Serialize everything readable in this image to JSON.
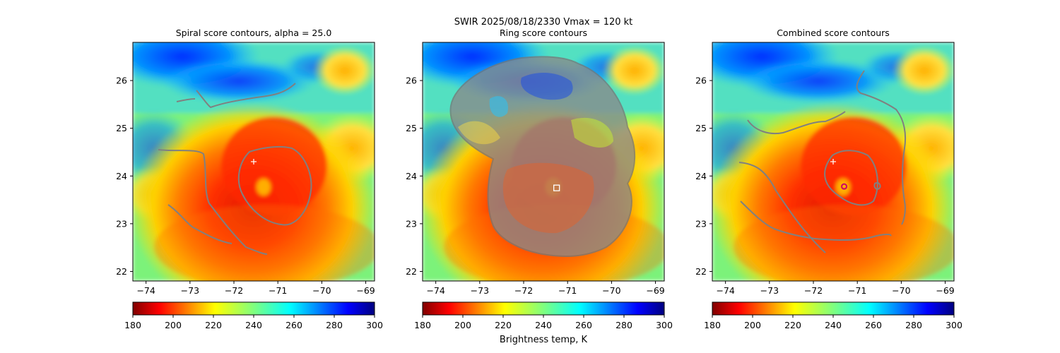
{
  "suptitle": "SWIR  2025/08/18/2330    Vmax = 120 kt",
  "colorbar": {
    "label": "Brightness temp, K",
    "vmin": 180,
    "vmax": 300,
    "ticks": [
      "180",
      "200",
      "220",
      "240",
      "260",
      "280",
      "300"
    ],
    "colormap": "jet_r"
  },
  "chart_data": [
    {
      "type": "heatmap",
      "title": "Spiral score contours, alpha = 25.0",
      "xlim": [
        -74.3,
        -68.8
      ],
      "ylim": [
        21.8,
        26.8
      ],
      "xticks": [
        "−74",
        "−73",
        "−72",
        "−71",
        "−70",
        "−69"
      ],
      "yticks": [
        "22",
        "23",
        "24",
        "25",
        "26"
      ],
      "markers": [
        {
          "kind": "plus",
          "lon": -71.55,
          "lat": 24.3,
          "color": "#ffffff"
        }
      ]
    },
    {
      "type": "heatmap",
      "title": "Ring score contours",
      "xlim": [
        -74.3,
        -68.8
      ],
      "ylim": [
        21.8,
        26.8
      ],
      "xticks": [
        "−74",
        "−73",
        "−72",
        "−71",
        "−70",
        "−69"
      ],
      "yticks": [
        "22",
        "23",
        "24",
        "25",
        "26"
      ],
      "markers": [
        {
          "kind": "square",
          "lon": -71.25,
          "lat": 23.75,
          "color": "#ffffff"
        }
      ]
    },
    {
      "type": "heatmap",
      "title": "Combined score contours",
      "xlim": [
        -74.3,
        -68.8
      ],
      "ylim": [
        21.8,
        26.8
      ],
      "xticks": [
        "−74",
        "−73",
        "−72",
        "−71",
        "−70",
        "−69"
      ],
      "yticks": [
        "22",
        "23",
        "24",
        "25",
        "26"
      ],
      "markers": [
        {
          "kind": "plus",
          "lon": -71.55,
          "lat": 24.3,
          "color": "#ffffff"
        },
        {
          "kind": "circle",
          "lon": -71.3,
          "lat": 23.78,
          "color": "#cc0066"
        }
      ]
    }
  ]
}
